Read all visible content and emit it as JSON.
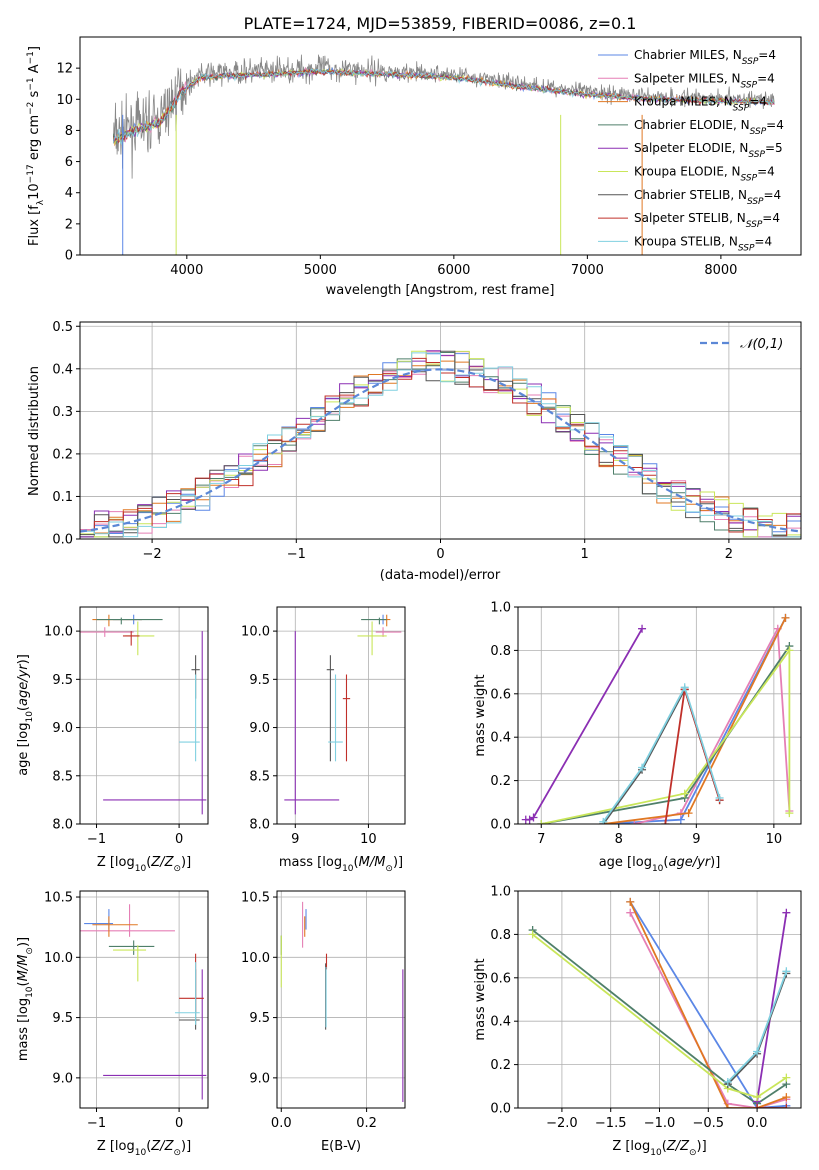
{
  "figure": {
    "title": "PLATE=1724, MJD=53859, FIBERID=0086, z=0.1"
  },
  "colors": {
    "Chabrier MILES": "#5b87e6",
    "Salpeter MILES": "#e57fb5",
    "Kroupa MILES": "#e07823",
    "Chabrier ELODIE": "#4f7f6a",
    "Salpeter ELODIE": "#8b2fb3",
    "Kroupa ELODIE": "#c9e65a",
    "Chabrier STELIB": "#555555",
    "Salpeter STELIB": "#c0302a",
    "Kroupa STELIB": "#80d0e0",
    "normal": "#5b87d6",
    "grid": "#b0b0b0"
  },
  "chart_data": [
    {
      "id": "spectrum",
      "type": "line",
      "xlabel": "wavelength [Angstrom, rest frame]",
      "ylabel": "Flux [f_λ10^−17 erg cm^−2 s^−1 A^−1]",
      "xlim": [
        3200,
        8600
      ],
      "ylim": [
        0,
        14
      ],
      "xticks": [
        4000,
        5000,
        6000,
        7000,
        8000
      ],
      "yticks": [
        0,
        2,
        4,
        6,
        8,
        10,
        12
      ],
      "grid": false,
      "legend_position": "upper right",
      "data_envelope": [
        {
          "x": 3450,
          "y": 7.6
        },
        {
          "x": 3600,
          "y": 8.2
        },
        {
          "x": 3800,
          "y": 8.7
        },
        {
          "x": 3950,
          "y": 10.6
        },
        {
          "x": 4100,
          "y": 11.6
        },
        {
          "x": 4300,
          "y": 11.7
        },
        {
          "x": 4600,
          "y": 11.8
        },
        {
          "x": 5000,
          "y": 12.0
        },
        {
          "x": 5500,
          "y": 11.8
        },
        {
          "x": 6000,
          "y": 11.6
        },
        {
          "x": 6500,
          "y": 11.0
        },
        {
          "x": 7000,
          "y": 10.5
        },
        {
          "x": 7500,
          "y": 10.2
        },
        {
          "x": 8000,
          "y": 10.1
        },
        {
          "x": 8400,
          "y": 10.0
        }
      ],
      "series": [
        {
          "name": "Chabrier MILES",
          "nssp": "4"
        },
        {
          "name": "Salpeter MILES",
          "nssp": "4"
        },
        {
          "name": "Kroupa MILES",
          "nssp": "4"
        },
        {
          "name": "Chabrier ELODIE",
          "nssp": "4"
        },
        {
          "name": "Salpeter ELODIE",
          "nssp": "5"
        },
        {
          "name": "Kroupa ELODIE",
          "nssp": "4"
        },
        {
          "name": "Chabrier STELIB",
          "nssp": "4"
        },
        {
          "name": "Salpeter STELIB",
          "nssp": "4"
        },
        {
          "name": "Kroupa STELIB",
          "nssp": "4"
        }
      ]
    },
    {
      "id": "residuals",
      "type": "line",
      "xlabel": "(data-model)/error",
      "ylabel": "Normed distribution",
      "xlim": [
        -2.5,
        2.5
      ],
      "ylim": [
        0,
        0.51
      ],
      "xticks": [
        -2,
        -1,
        0,
        1,
        2
      ],
      "yticks": [
        0.0,
        0.1,
        0.2,
        0.3,
        0.4,
        0.5
      ],
      "grid": true,
      "legend": "𝒩(0,1)",
      "legend_position": "upper right",
      "normal_curve": {
        "mean": 0,
        "sigma": 1
      },
      "histogram_bins": {
        "start": -2.5,
        "width": 0.1,
        "count": 50
      }
    },
    {
      "id": "age-vs-Z",
      "type": "scatter",
      "xlabel": "Z [log10(Z/Z☉)]",
      "ylabel": "age [log10(age/yr)]",
      "xlim": [
        -1.2,
        0.35
      ],
      "ylim": [
        8.0,
        10.25
      ],
      "xticks": [
        -1,
        0
      ],
      "yticks": [
        8.0,
        8.5,
        9.0,
        9.5,
        10.0
      ],
      "points": [
        {
          "series": "Chabrier MILES",
          "x": -0.55,
          "xerr": [
            0.25,
            0.1
          ],
          "y": 10.12,
          "yerr": [
            0.05,
            0.05
          ]
        },
        {
          "series": "Salpeter MILES",
          "x": -0.9,
          "xerr": [
            0.3,
            0.35
          ],
          "y": 9.99,
          "yerr": [
            0.05,
            0.05
          ]
        },
        {
          "series": "Kroupa MILES",
          "x": -0.85,
          "xerr": [
            0.2,
            0.4
          ],
          "y": 10.12,
          "yerr": [
            0.07,
            0.05
          ]
        },
        {
          "series": "Chabrier ELODIE",
          "x": -0.7,
          "xerr": [
            0.3,
            0.5
          ],
          "y": 10.12,
          "yerr": [
            0.05,
            0.02
          ]
        },
        {
          "series": "Salpeter ELODIE",
          "x": 0.28,
          "xerr": [
            1.2,
            0.05
          ],
          "y": 8.25,
          "yerr": [
            0.15,
            1.75
          ]
        },
        {
          "series": "Kroupa ELODIE",
          "x": -0.5,
          "xerr": [
            0.15,
            0.2
          ],
          "y": 9.95,
          "yerr": [
            0.2,
            0.15
          ]
        },
        {
          "series": "Chabrier STELIB",
          "x": 0.2,
          "xerr": [
            0.05,
            0.05
          ],
          "y": 9.6,
          "yerr": [
            0.3,
            0.15
          ]
        },
        {
          "series": "Salpeter STELIB",
          "x": -0.58,
          "xerr": [
            0.1,
            0.1
          ],
          "y": 9.95,
          "yerr": [
            0.1,
            0.05
          ]
        },
        {
          "series": "Kroupa STELIB",
          "x": 0.2,
          "xerr": [
            0.2,
            0.05
          ],
          "y": 8.85,
          "yerr": [
            0.2,
            0.7
          ]
        }
      ]
    },
    {
      "id": "age-vs-mass",
      "type": "scatter",
      "xlabel": "mass [log10(M/M☉)]",
      "ylabel": "",
      "xlim": [
        8.75,
        10.5
      ],
      "ylim": [
        8.0,
        10.25
      ],
      "xticks": [
        9,
        10
      ],
      "yticks": [
        8.0,
        8.5,
        9.0,
        9.5,
        10.0
      ],
      "points": [
        {
          "series": "Chabrier MILES",
          "x": 10.2,
          "xerr": [
            0.05,
            0.05
          ],
          "y": 10.12,
          "yerr": [
            0.05,
            0.05
          ]
        },
        {
          "series": "Salpeter MILES",
          "x": 10.2,
          "xerr": [
            0.1,
            0.25
          ],
          "y": 9.99,
          "yerr": [
            0.05,
            0.05
          ]
        },
        {
          "series": "Kroupa MILES",
          "x": 10.25,
          "xerr": [
            0.05,
            0.05
          ],
          "y": 10.12,
          "yerr": [
            0.07,
            0.05
          ]
        },
        {
          "series": "Chabrier ELODIE",
          "x": 10.15,
          "xerr": [
            0.25,
            0.1
          ],
          "y": 10.12,
          "yerr": [
            0.05,
            0.02
          ]
        },
        {
          "series": "Salpeter ELODIE",
          "x": 9.0,
          "xerr": [
            0.15,
            0.6
          ],
          "y": 8.25,
          "yerr": [
            0.15,
            1.75
          ]
        },
        {
          "series": "Kroupa ELODIE",
          "x": 10.05,
          "xerr": [
            0.2,
            0.2
          ],
          "y": 9.95,
          "yerr": [
            0.2,
            0.15
          ]
        },
        {
          "series": "Chabrier STELIB",
          "x": 9.48,
          "xerr": [
            0.05,
            0.05
          ],
          "y": 9.6,
          "yerr": [
            0.95,
            0.15
          ]
        },
        {
          "series": "Salpeter STELIB",
          "x": 9.7,
          "xerr": [
            0.05,
            0.05
          ],
          "y": 9.3,
          "yerr": [
            0.65,
            0.25
          ]
        },
        {
          "series": "Kroupa STELIB",
          "x": 9.55,
          "xerr": [
            0.1,
            0.1
          ],
          "y": 8.85,
          "yerr": [
            0.2,
            0.7
          ]
        }
      ]
    },
    {
      "id": "massweight-vs-age",
      "type": "line",
      "xlabel": "age [log10(age/yr)]",
      "ylabel": "mass weight",
      "xlim": [
        6.7,
        10.35
      ],
      "ylim": [
        0.0,
        1.0
      ],
      "xticks": [
        7,
        8,
        9,
        10
      ],
      "yticks": [
        0.0,
        0.2,
        0.4,
        0.6,
        0.8,
        1.0
      ],
      "grid": true,
      "series": [
        {
          "name": "Chabrier MILES",
          "x": [
            7.8,
            8.8,
            10.15
          ],
          "y": [
            0.0,
            0.02,
            0.95
          ]
        },
        {
          "name": "Salpeter MILES",
          "x": [
            8.2,
            8.8,
            10.05,
            10.2
          ],
          "y": [
            0.0,
            0.05,
            0.9,
            0.06
          ]
        },
        {
          "name": "Kroupa MILES",
          "x": [
            7.8,
            8.9,
            10.15
          ],
          "y": [
            0.0,
            0.05,
            0.95
          ]
        },
        {
          "name": "Chabrier ELODIE",
          "x": [
            7.0,
            8.85,
            10.2
          ],
          "y": [
            0.0,
            0.12,
            0.82
          ]
        },
        {
          "name": "Salpeter ELODIE",
          "x": [
            6.8,
            6.85,
            6.9,
            8.3
          ],
          "y": [
            0.02,
            0.02,
            0.03,
            0.9
          ]
        },
        {
          "name": "Kroupa ELODIE",
          "x": [
            7.0,
            8.85,
            10.2,
            10.2
          ],
          "y": [
            0.0,
            0.14,
            0.8,
            0.05
          ]
        },
        {
          "name": "Chabrier STELIB",
          "x": [
            7.8,
            8.3,
            8.85,
            9.3
          ],
          "y": [
            0.0,
            0.25,
            0.62,
            0.11
          ]
        },
        {
          "name": "Salpeter STELIB",
          "x": [
            8.6,
            8.85,
            9.3
          ],
          "y": [
            0.0,
            0.62,
            0.11
          ]
        },
        {
          "name": "Kroupa STELIB",
          "x": [
            7.8,
            8.3,
            8.85,
            9.3
          ],
          "y": [
            0.01,
            0.26,
            0.63,
            0.12
          ]
        }
      ]
    },
    {
      "id": "mass-vs-Z",
      "type": "scatter",
      "xlabel": "Z [log10(Z/Z☉)]",
      "ylabel": "mass [log10(M/M☉)]",
      "xlim": [
        -1.2,
        0.35
      ],
      "ylim": [
        8.75,
        10.55
      ],
      "xticks": [
        -1,
        0
      ],
      "yticks": [
        9.0,
        9.5,
        10.0,
        10.5
      ],
      "points": [
        {
          "series": "Chabrier MILES",
          "x": -0.85,
          "xerr": [
            0.3,
            0.05
          ],
          "y": 10.28,
          "yerr": [
            0.05,
            0.12
          ]
        },
        {
          "series": "Salpeter MILES",
          "x": -0.6,
          "xerr": [
            0.6,
            0.55
          ],
          "y": 10.22,
          "yerr": [
            0.05,
            0.22
          ]
        },
        {
          "series": "Kroupa MILES",
          "x": -0.85,
          "xerr": [
            0.2,
            0.35
          ],
          "y": 10.27,
          "yerr": [
            0.1,
            0.07
          ]
        },
        {
          "series": "Chabrier ELODIE",
          "x": -0.55,
          "xerr": [
            0.3,
            0.25
          ],
          "y": 10.09,
          "yerr": [
            0.07,
            0.05
          ]
        },
        {
          "series": "Salpeter ELODIE",
          "x": 0.28,
          "xerr": [
            1.2,
            0.05
          ],
          "y": 9.02,
          "yerr": [
            0.2,
            0.88
          ]
        },
        {
          "series": "Kroupa ELODIE",
          "x": -0.5,
          "xerr": [
            0.3,
            0.1
          ],
          "y": 10.06,
          "yerr": [
            0.26,
            0.04
          ]
        },
        {
          "series": "Chabrier STELIB",
          "x": 0.2,
          "xerr": [
            0.2,
            0.05
          ],
          "y": 9.48,
          "yerr": [
            0.08,
            0.42
          ]
        },
        {
          "series": "Salpeter STELIB",
          "x": 0.2,
          "xerr": [
            0.2,
            0.1
          ],
          "y": 9.66,
          "yerr": [
            0.12,
            0.37
          ]
        },
        {
          "series": "Kroupa STELIB",
          "x": 0.2,
          "xerr": [
            0.25,
            0.05
          ],
          "y": 9.54,
          "yerr": [
            0.1,
            0.42
          ]
        }
      ]
    },
    {
      "id": "mass-vs-EBV",
      "type": "scatter",
      "xlabel": "E(B-V)",
      "ylabel": "",
      "xlim": [
        -0.01,
        0.29
      ],
      "ylim": [
        8.75,
        10.55
      ],
      "xticks": [
        0.0,
        0.2
      ],
      "yticks": [
        9.0,
        9.5,
        10.0,
        10.5
      ],
      "points": [
        {
          "series": "Chabrier MILES",
          "x": 0.058,
          "y": 10.28,
          "yerr": [
            0.05,
            0.12
          ]
        },
        {
          "series": "Salpeter MILES",
          "x": 0.05,
          "y": 10.22,
          "yerr": [
            0.14,
            0.24
          ]
        },
        {
          "series": "Kroupa MILES",
          "x": 0.055,
          "y": 10.27,
          "yerr": [
            0.1,
            0.07
          ]
        },
        {
          "series": "Chabrier ELODIE",
          "x": 0.0,
          "y": 10.09,
          "yerr": [
            0.07,
            0.09
          ]
        },
        {
          "series": "Salpeter ELODIE",
          "x": 0.285,
          "y": 9.35,
          "yerr": [
            0.55,
            0.55
          ]
        },
        {
          "series": "Kroupa ELODIE",
          "x": 0.0,
          "y": 10.0,
          "yerr": [
            0.25,
            0.18
          ]
        },
        {
          "series": "Chabrier STELIB",
          "x": 0.104,
          "y": 9.7,
          "yerr": [
            0.3,
            0.25
          ]
        },
        {
          "series": "Salpeter STELIB",
          "x": 0.106,
          "y": 9.95,
          "yerr": [
            0.05,
            0.08
          ]
        },
        {
          "series": "Kroupa STELIB",
          "x": 0.105,
          "y": 9.7,
          "yerr": [
            0.28,
            0.22
          ]
        }
      ]
    },
    {
      "id": "massweight-vs-Z",
      "type": "line",
      "xlabel": "Z [log10(Z/Z☉)]",
      "ylabel": "mass weight",
      "xlim": [
        -2.45,
        0.45
      ],
      "ylim": [
        0.0,
        1.0
      ],
      "xticks": [
        -2.0,
        -1.5,
        -1.0,
        -0.5,
        0.0
      ],
      "yticks": [
        0.0,
        0.2,
        0.4,
        0.6,
        0.8,
        1.0
      ],
      "grid": true,
      "series": [
        {
          "name": "Chabrier MILES",
          "x": [
            -1.3,
            0.0,
            0.3
          ],
          "y": [
            0.95,
            0.0,
            0.01
          ]
        },
        {
          "name": "Salpeter MILES",
          "x": [
            -1.3,
            -0.3,
            0.0,
            0.3
          ],
          "y": [
            0.9,
            0.02,
            0.0,
            0.04
          ]
        },
        {
          "name": "Kroupa MILES",
          "x": [
            -1.3,
            -0.3,
            0.0,
            0.3
          ],
          "y": [
            0.95,
            0.0,
            0.0,
            0.05
          ]
        },
        {
          "name": "Chabrier ELODIE",
          "x": [
            -2.3,
            -0.3,
            0.0,
            0.3
          ],
          "y": [
            0.82,
            0.11,
            0.02,
            0.11
          ]
        },
        {
          "name": "Salpeter ELODIE",
          "x": [
            0.0,
            0.3
          ],
          "y": [
            0.03,
            0.9
          ]
        },
        {
          "name": "Kroupa ELODIE",
          "x": [
            -2.3,
            -0.3,
            0.0,
            0.3
          ],
          "y": [
            0.8,
            0.09,
            0.05,
            0.14
          ]
        },
        {
          "name": "Chabrier STELIB",
          "x": [
            -0.3,
            0.0,
            0.3
          ],
          "y": [
            0.11,
            0.25,
            0.62
          ]
        },
        {
          "name": "Salpeter STELIB",
          "x": [
            0.0,
            0.3
          ],
          "y": [
            0.0,
            0.0
          ]
        },
        {
          "name": "Kroupa STELIB",
          "x": [
            -0.3,
            0.0,
            0.3
          ],
          "y": [
            0.12,
            0.26,
            0.63
          ]
        }
      ]
    }
  ]
}
